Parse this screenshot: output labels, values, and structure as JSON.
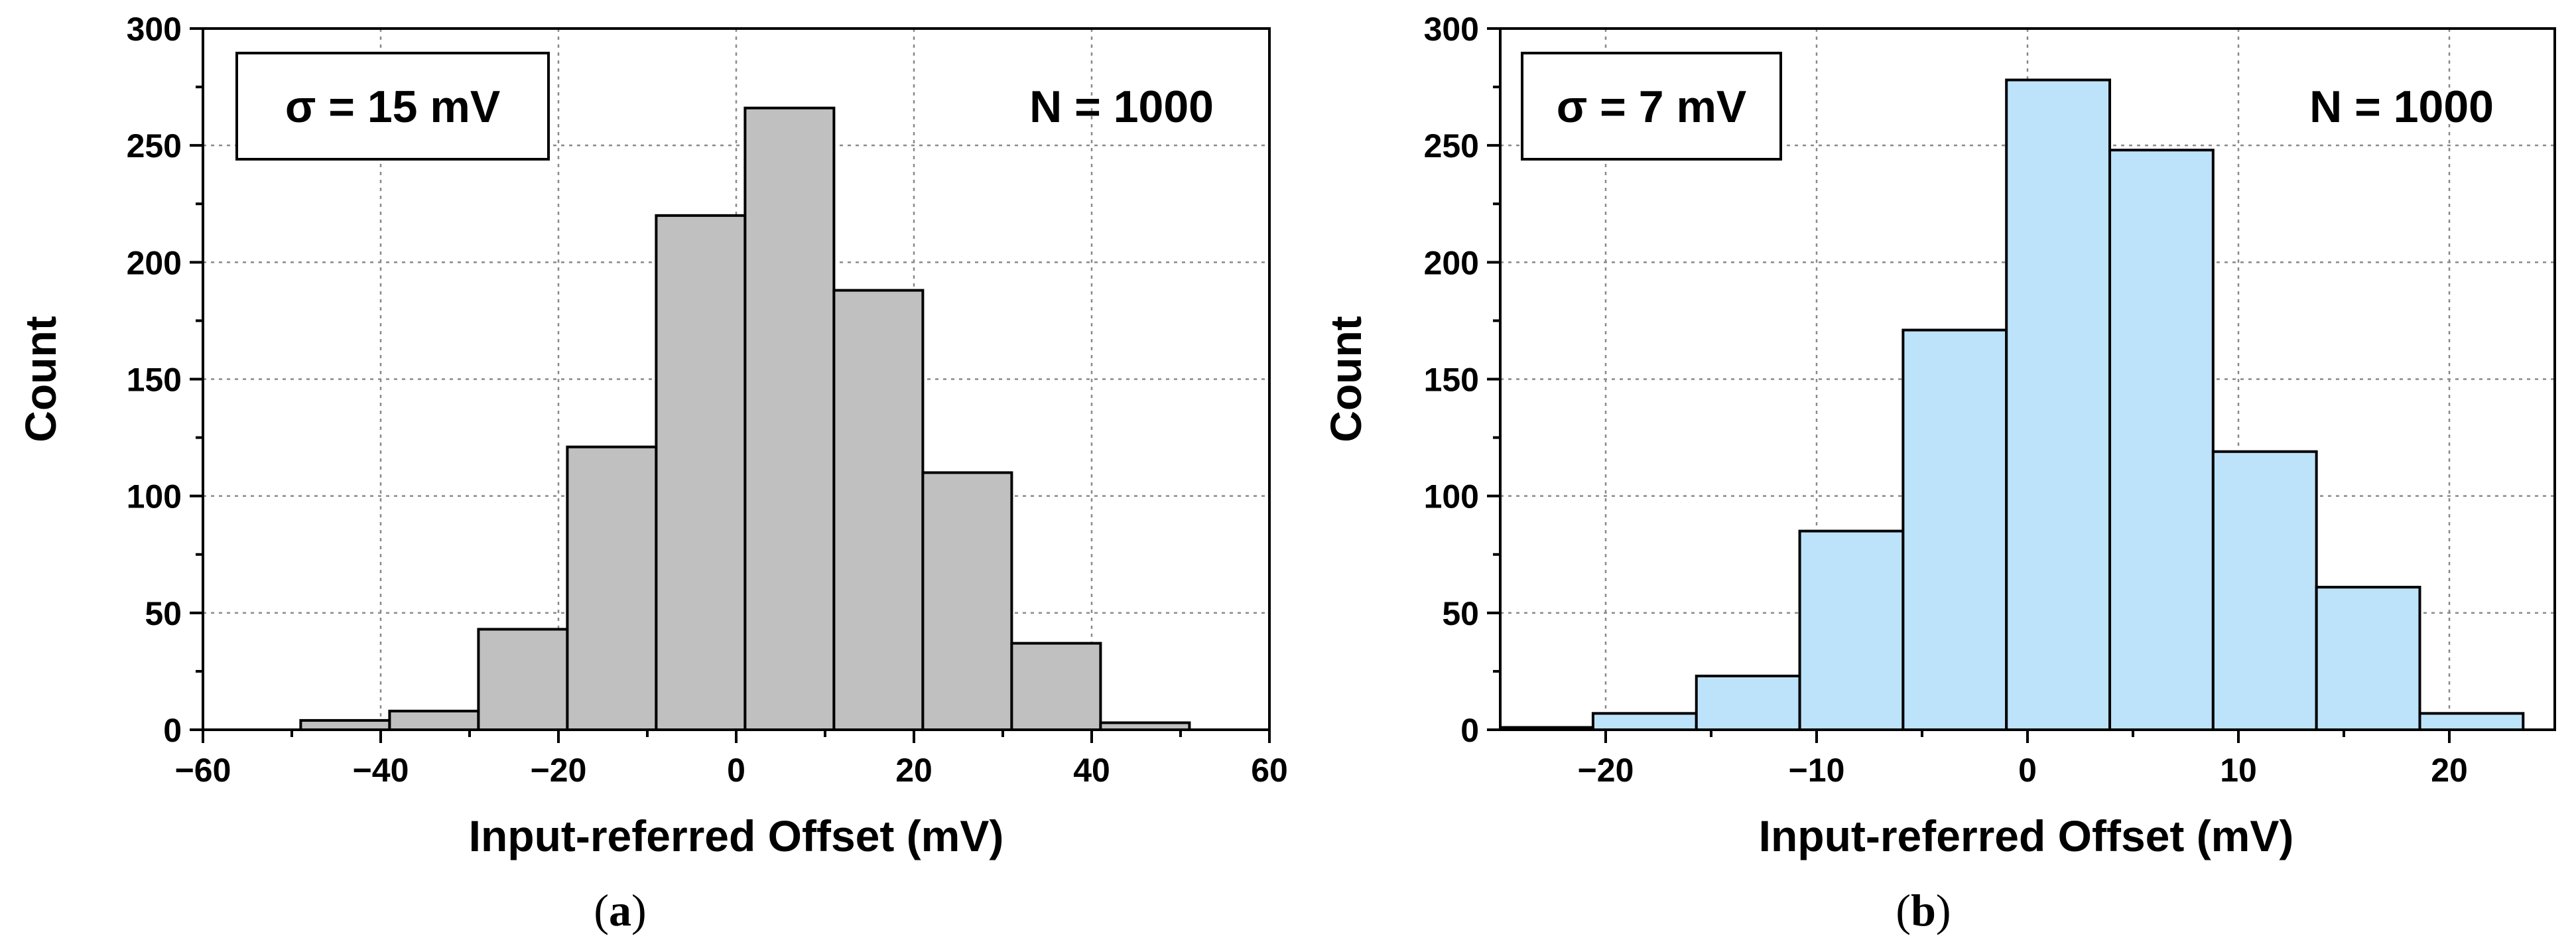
{
  "chart_data": [
    {
      "type": "bar",
      "panel_label": "a",
      "bar_color": "#c0c0c0",
      "xlabel": "Input-referred Offset (mV)",
      "ylabel": "Count",
      "xlim": [
        -60,
        60
      ],
      "ylim": [
        0,
        300
      ],
      "xticks": [
        -60,
        -40,
        -20,
        0,
        20,
        40,
        60
      ],
      "xtick_labels": [
        "−60",
        "−40",
        "−20",
        "0",
        "20",
        "40",
        "60"
      ],
      "yticks": [
        0,
        50,
        100,
        150,
        200,
        250,
        300
      ],
      "ytick_labels": [
        "0",
        "50",
        "100",
        "150",
        "200",
        "250",
        "300"
      ],
      "grid": true,
      "sigma_label": "σ = 15 mV",
      "n_label": "N = 1000",
      "bin_edges": [
        -49,
        -39,
        -29,
        -19,
        -9,
        1,
        11,
        21,
        31,
        41,
        51
      ],
      "values": [
        4,
        8,
        43,
        121,
        220,
        266,
        188,
        110,
        37,
        3
      ]
    },
    {
      "type": "bar",
      "panel_label": "b",
      "bar_color": "#bde3fb",
      "xlabel": "Input-referred Offset (mV)",
      "ylabel": "Count",
      "xlim": [
        -25,
        25
      ],
      "ylim": [
        0,
        300
      ],
      "xticks": [
        -20,
        -10,
        0,
        10,
        20
      ],
      "xtick_labels": [
        "−20",
        "−10",
        "0",
        "10",
        "20"
      ],
      "yticks": [
        0,
        50,
        100,
        150,
        200,
        250,
        300
      ],
      "ytick_labels": [
        "0",
        "50",
        "100",
        "150",
        "200",
        "250",
        "300"
      ],
      "grid": true,
      "sigma_label": "σ = 7 mV",
      "n_label": "N = 1000",
      "bin_edges": [
        -25.5,
        -20.6,
        -15.7,
        -10.8,
        -5.9,
        -1.0,
        3.9,
        8.8,
        13.7,
        18.6,
        23.5
      ],
      "values": [
        1,
        7,
        23,
        85,
        171,
        278,
        248,
        119,
        61,
        7
      ]
    }
  ],
  "captions": {
    "a": {
      "open": "(",
      "letter": "a",
      "close": ")"
    },
    "b": {
      "open": "(",
      "letter": "b",
      "close": ")"
    }
  }
}
